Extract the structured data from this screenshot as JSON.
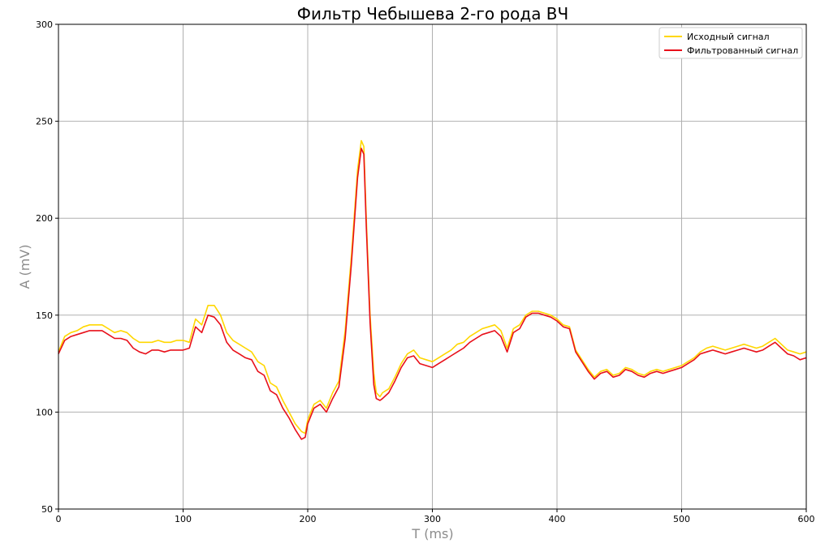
{
  "chart_data": {
    "type": "line",
    "title": "Фильтр Чебышева 2-го рода ВЧ",
    "xlabel": "T (ms)",
    "ylabel": "A (mV)",
    "xlim": [
      0,
      600
    ],
    "ylim": [
      50,
      300
    ],
    "xticks": [
      "0",
      "100",
      "200",
      "300",
      "400",
      "500",
      "600"
    ],
    "yticks": [
      "50",
      "100",
      "150",
      "200",
      "250",
      "300"
    ],
    "grid": true,
    "legend_position": "top-right",
    "x": [
      0,
      5,
      10,
      15,
      20,
      25,
      30,
      35,
      40,
      45,
      50,
      55,
      60,
      65,
      70,
      75,
      80,
      85,
      90,
      95,
      100,
      105,
      110,
      115,
      120,
      125,
      130,
      135,
      140,
      145,
      150,
      155,
      160,
      165,
      170,
      175,
      180,
      185,
      190,
      195,
      198,
      200,
      205,
      210,
      215,
      220,
      225,
      230,
      235,
      240,
      243,
      245,
      247,
      250,
      253,
      255,
      258,
      260,
      265,
      270,
      275,
      280,
      285,
      290,
      295,
      300,
      305,
      310,
      315,
      320,
      325,
      330,
      335,
      340,
      345,
      350,
      355,
      360,
      365,
      370,
      375,
      380,
      385,
      390,
      395,
      400,
      405,
      410,
      415,
      420,
      425,
      430,
      435,
      440,
      445,
      450,
      455,
      460,
      465,
      470,
      475,
      480,
      485,
      490,
      495,
      500,
      505,
      510,
      515,
      520,
      525,
      530,
      535,
      540,
      545,
      550,
      555,
      560,
      565,
      570,
      575,
      580,
      585,
      590,
      595,
      600
    ],
    "series": [
      {
        "name": "Исходный сигнал",
        "color": "#ffd700",
        "values": [
          131,
          139,
          141,
          142,
          144,
          145,
          145,
          145,
          143,
          141,
          142,
          141,
          138,
          136,
          136,
          136,
          137,
          136,
          136,
          137,
          137,
          136,
          148,
          145,
          155,
          155,
          150,
          141,
          137,
          135,
          133,
          131,
          126,
          124,
          115,
          113,
          106,
          100,
          94,
          90,
          89,
          96,
          104,
          106,
          102,
          110,
          116,
          142,
          180,
          225,
          240,
          237,
          200,
          150,
          120,
          110,
          108,
          110,
          112,
          118,
          125,
          130,
          132,
          128,
          127,
          126,
          128,
          130,
          132,
          135,
          136,
          139,
          141,
          143,
          144,
          145,
          142,
          133,
          143,
          145,
          150,
          152,
          152,
          151,
          150,
          148,
          145,
          144,
          132,
          127,
          122,
          118,
          121,
          122,
          119,
          120,
          123,
          122,
          120,
          119,
          121,
          122,
          121,
          122,
          123,
          124,
          126,
          128,
          131,
          133,
          134,
          133,
          132,
          133,
          134,
          135,
          134,
          133,
          134,
          136,
          138,
          135,
          132,
          131,
          130,
          131
        ]
      },
      {
        "name": "Фильтрованный сигнал",
        "color": "#e8101a",
        "values": [
          130,
          137,
          139,
          140,
          141,
          142,
          142,
          142,
          140,
          138,
          138,
          137,
          133,
          131,
          130,
          132,
          132,
          131,
          132,
          132,
          132,
          133,
          144,
          141,
          150,
          149,
          145,
          136,
          132,
          130,
          128,
          127,
          121,
          119,
          111,
          109,
          102,
          97,
          91,
          86,
          87,
          94,
          102,
          104,
          100,
          107,
          113,
          138,
          176,
          221,
          236,
          233,
          196,
          146,
          114,
          107,
          106,
          107,
          110,
          116,
          123,
          128,
          129,
          125,
          124,
          123,
          125,
          127,
          129,
          131,
          133,
          136,
          138,
          140,
          141,
          142,
          139,
          131,
          141,
          143,
          149,
          151,
          151,
          150,
          149,
          147,
          144,
          143,
          131,
          126,
          121,
          117,
          120,
          121,
          118,
          119,
          122,
          121,
          119,
          118,
          120,
          121,
          120,
          121,
          122,
          123,
          125,
          127,
          130,
          131,
          132,
          131,
          130,
          131,
          132,
          133,
          132,
          131,
          132,
          134,
          136,
          133,
          130,
          129,
          127,
          128
        ]
      }
    ]
  }
}
